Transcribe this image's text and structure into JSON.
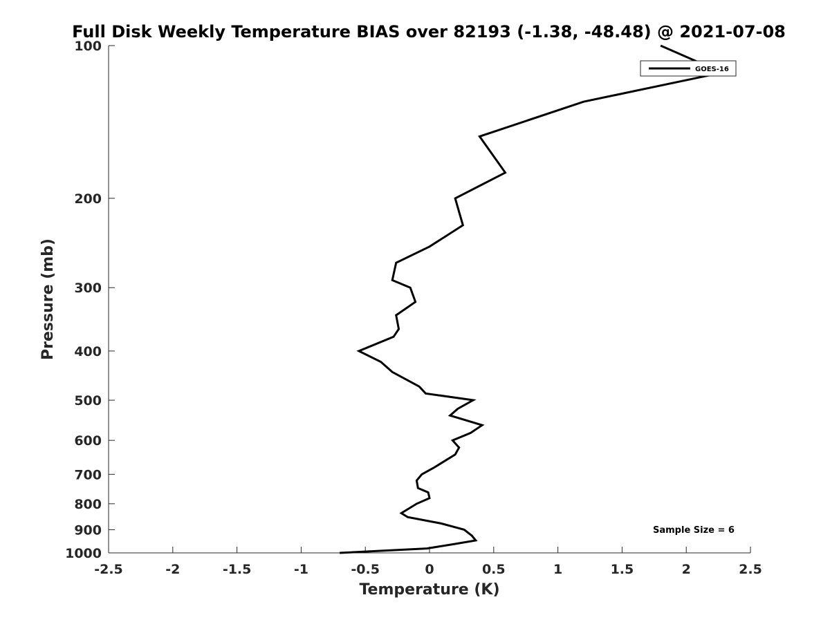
{
  "chart_data": {
    "type": "line",
    "title": "Full Disk Weekly Temperature BIAS over 82193 (-1.38, -48.48) @ 2021-07-08",
    "xlabel": "Temperature (K)",
    "ylabel": "Pressure (mb)",
    "xlim": [
      -2.5,
      2.5
    ],
    "ylim": [
      100,
      1000
    ],
    "y_scale": "log",
    "y_reversed": true,
    "grid": false,
    "legend_position": "top-right",
    "x_ticks": [
      -2.5,
      -2,
      -1.5,
      -1,
      -0.5,
      0,
      0.5,
      1,
      1.5,
      2,
      2.5
    ],
    "x_tick_labels": [
      "-2.5",
      "-2",
      "-1.5",
      "-1",
      "-0.5",
      "0",
      "0.5",
      "1",
      "1.5",
      "2",
      "2.5"
    ],
    "y_ticks": [
      100,
      200,
      300,
      400,
      500,
      600,
      700,
      800,
      900,
      1000
    ],
    "y_tick_labels": [
      "100",
      "200",
      "300",
      "400",
      "500",
      "600",
      "700",
      "800",
      "900",
      "1000"
    ],
    "annotation": "Sample Size = 6",
    "series": [
      {
        "name": "GOES-16",
        "color": "#000000",
        "points": [
          {
            "x": 1.8,
            "y": 100
          },
          {
            "x": 2.28,
            "y": 113
          },
          {
            "x": 1.2,
            "y": 129
          },
          {
            "x": 0.39,
            "y": 151
          },
          {
            "x": 0.59,
            "y": 178
          },
          {
            "x": 0.2,
            "y": 200
          },
          {
            "x": 0.26,
            "y": 226
          },
          {
            "x": 0.0,
            "y": 249
          },
          {
            "x": -0.26,
            "y": 268
          },
          {
            "x": -0.29,
            "y": 290
          },
          {
            "x": -0.15,
            "y": 300
          },
          {
            "x": -0.11,
            "y": 320
          },
          {
            "x": -0.26,
            "y": 340
          },
          {
            "x": -0.24,
            "y": 362
          },
          {
            "x": -0.28,
            "y": 375
          },
          {
            "x": -0.55,
            "y": 400
          },
          {
            "x": -0.38,
            "y": 420
          },
          {
            "x": -0.29,
            "y": 440
          },
          {
            "x": -0.08,
            "y": 470
          },
          {
            "x": -0.03,
            "y": 485
          },
          {
            "x": 0.34,
            "y": 500
          },
          {
            "x": 0.22,
            "y": 520
          },
          {
            "x": 0.16,
            "y": 536
          },
          {
            "x": 0.41,
            "y": 560
          },
          {
            "x": 0.32,
            "y": 580
          },
          {
            "x": 0.18,
            "y": 600
          },
          {
            "x": 0.23,
            "y": 620
          },
          {
            "x": 0.2,
            "y": 640
          },
          {
            "x": 0.03,
            "y": 680
          },
          {
            "x": -0.06,
            "y": 700
          },
          {
            "x": -0.1,
            "y": 720
          },
          {
            "x": -0.09,
            "y": 745
          },
          {
            "x": -0.01,
            "y": 760
          },
          {
            "x": 0.0,
            "y": 780
          },
          {
            "x": -0.1,
            "y": 800
          },
          {
            "x": -0.22,
            "y": 835
          },
          {
            "x": -0.17,
            "y": 850
          },
          {
            "x": 0.09,
            "y": 875
          },
          {
            "x": 0.27,
            "y": 900
          },
          {
            "x": 0.33,
            "y": 925
          },
          {
            "x": 0.36,
            "y": 945
          },
          {
            "x": 0.2,
            "y": 960
          },
          {
            "x": -0.02,
            "y": 980
          },
          {
            "x": -0.7,
            "y": 1000
          }
        ]
      }
    ]
  }
}
